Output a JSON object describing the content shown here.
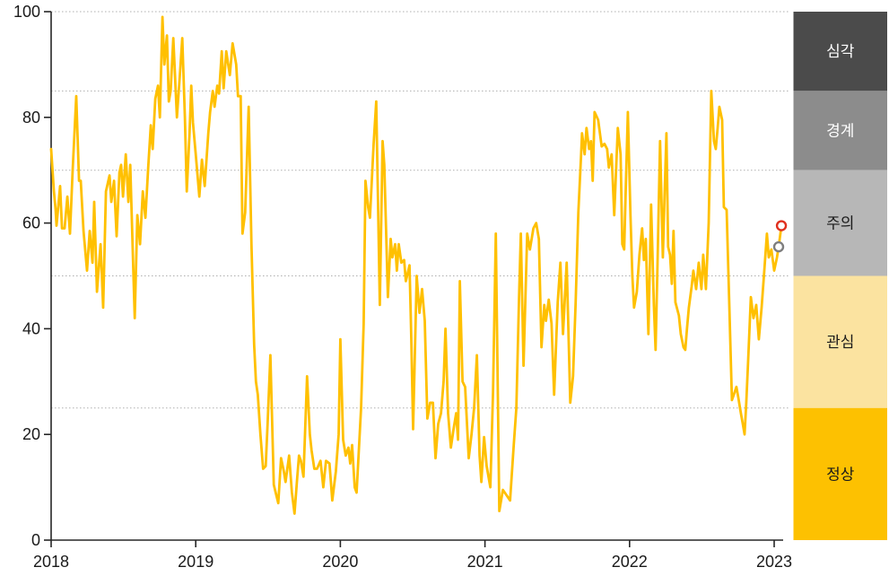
{
  "chart_data": {
    "type": "line",
    "title": "",
    "x_axis": {
      "ticks": [
        "2018",
        "2019",
        "2020",
        "2021",
        "2022",
        "2023"
      ],
      "range": [
        2018,
        2023.09
      ]
    },
    "y_axis": {
      "ticks": [
        0,
        20,
        40,
        60,
        80,
        100
      ],
      "range": [
        0,
        100
      ]
    },
    "gridlines_at": [
      25,
      50,
      70,
      85,
      100
    ],
    "legend_position": "right-band",
    "grid": "dotted-horizontal",
    "bands": [
      {
        "label": "심각",
        "from": 85,
        "to": 100,
        "color": "#4B4B4B",
        "text_color": "#FFFFFF"
      },
      {
        "label": "경계",
        "from": 70,
        "to": 85,
        "color": "#8C8C8C",
        "text_color": "#FFFFFF"
      },
      {
        "label": "주의",
        "from": 50,
        "to": 70,
        "color": "#B7B7B7",
        "text_color": "#1A1A1A"
      },
      {
        "label": "관심",
        "from": 25,
        "to": 50,
        "color": "#FBE3A0",
        "text_color": "#1A1A1A"
      },
      {
        "label": "정상",
        "from": 0,
        "to": 25,
        "color": "#FDC101",
        "text_color": "#1A1A1A"
      }
    ],
    "series": [
      {
        "name": "index",
        "color": "#FFC000",
        "points": [
          [
            2018.0,
            74
          ],
          [
            2018.019,
            66
          ],
          [
            2018.031,
            62.5
          ],
          [
            2018.037,
            59.5
          ],
          [
            2018.062,
            67
          ],
          [
            2018.075,
            59
          ],
          [
            2018.093,
            59
          ],
          [
            2018.112,
            65
          ],
          [
            2018.13,
            58
          ],
          [
            2018.149,
            70
          ],
          [
            2018.174,
            84
          ],
          [
            2018.193,
            68
          ],
          [
            2018.205,
            68
          ],
          [
            2018.224,
            58.5
          ],
          [
            2018.248,
            51
          ],
          [
            2018.267,
            58.5
          ],
          [
            2018.286,
            52.5
          ],
          [
            2018.298,
            64
          ],
          [
            2018.317,
            47
          ],
          [
            2018.342,
            56
          ],
          [
            2018.36,
            44
          ],
          [
            2018.379,
            66
          ],
          [
            2018.404,
            69
          ],
          [
            2018.416,
            64
          ],
          [
            2018.435,
            68
          ],
          [
            2018.453,
            57.5
          ],
          [
            2018.472,
            69.5
          ],
          [
            2018.484,
            71
          ],
          [
            2018.497,
            65
          ],
          [
            2018.516,
            73
          ],
          [
            2018.534,
            64
          ],
          [
            2018.547,
            71
          ],
          [
            2018.565,
            54
          ],
          [
            2018.578,
            42
          ],
          [
            2018.596,
            61.5
          ],
          [
            2018.615,
            56
          ],
          [
            2018.634,
            66
          ],
          [
            2018.652,
            61
          ],
          [
            2018.671,
            70.5
          ],
          [
            2018.689,
            78.5
          ],
          [
            2018.702,
            74
          ],
          [
            2018.72,
            83.5
          ],
          [
            2018.739,
            86
          ],
          [
            2018.752,
            80
          ],
          [
            2018.77,
            99
          ],
          [
            2018.783,
            90
          ],
          [
            2018.801,
            95.5
          ],
          [
            2018.814,
            83
          ],
          [
            2018.826,
            85
          ],
          [
            2018.845,
            95
          ],
          [
            2018.87,
            80
          ],
          [
            2018.888,
            87
          ],
          [
            2018.907,
            95
          ],
          [
            2018.925,
            80
          ],
          [
            2018.938,
            66
          ],
          [
            2018.957,
            77
          ],
          [
            2018.969,
            86
          ],
          [
            2018.981,
            79
          ],
          [
            2019.0,
            73
          ],
          [
            2019.025,
            65
          ],
          [
            2019.043,
            72
          ],
          [
            2019.062,
            67
          ],
          [
            2019.087,
            77
          ],
          [
            2019.099,
            81
          ],
          [
            2019.118,
            85
          ],
          [
            2019.13,
            82
          ],
          [
            2019.149,
            86
          ],
          [
            2019.161,
            84.5
          ],
          [
            2019.18,
            92.5
          ],
          [
            2019.193,
            85.5
          ],
          [
            2019.211,
            92.5
          ],
          [
            2019.236,
            88
          ],
          [
            2019.255,
            94
          ],
          [
            2019.28,
            90
          ],
          [
            2019.292,
            84
          ],
          [
            2019.311,
            84
          ],
          [
            2019.323,
            58
          ],
          [
            2019.342,
            62
          ],
          [
            2019.366,
            82
          ],
          [
            2019.385,
            56
          ],
          [
            2019.404,
            37
          ],
          [
            2019.416,
            30
          ],
          [
            2019.429,
            27.5
          ],
          [
            2019.447,
            20
          ],
          [
            2019.466,
            13.5
          ],
          [
            2019.484,
            14
          ],
          [
            2019.497,
            22
          ],
          [
            2019.516,
            35
          ],
          [
            2019.54,
            10.5
          ],
          [
            2019.553,
            9
          ],
          [
            2019.571,
            7
          ],
          [
            2019.59,
            15.5
          ],
          [
            2019.609,
            13
          ],
          [
            2019.621,
            11
          ],
          [
            2019.646,
            16
          ],
          [
            2019.665,
            9
          ],
          [
            2019.683,
            5
          ],
          [
            2019.702,
            12
          ],
          [
            2019.714,
            16
          ],
          [
            2019.727,
            15
          ],
          [
            2019.745,
            12
          ],
          [
            2019.77,
            31
          ],
          [
            2019.789,
            20
          ],
          [
            2019.801,
            17
          ],
          [
            2019.82,
            13.5
          ],
          [
            2019.839,
            13.5
          ],
          [
            2019.863,
            15
          ],
          [
            2019.882,
            10
          ],
          [
            2019.901,
            15
          ],
          [
            2019.925,
            14.5
          ],
          [
            2019.944,
            7.5
          ],
          [
            2019.969,
            13
          ],
          [
            2019.988,
            20
          ],
          [
            2020.0,
            38
          ],
          [
            2020.019,
            19
          ],
          [
            2020.037,
            16
          ],
          [
            2020.056,
            17.5
          ],
          [
            2020.068,
            14.5
          ],
          [
            2020.081,
            18
          ],
          [
            2020.099,
            10
          ],
          [
            2020.112,
            9
          ],
          [
            2020.124,
            15
          ],
          [
            2020.143,
            25
          ],
          [
            2020.161,
            41
          ],
          [
            2020.174,
            68
          ],
          [
            2020.192,
            63
          ],
          [
            2020.205,
            61
          ],
          [
            2020.23,
            75
          ],
          [
            2020.248,
            83
          ],
          [
            2020.273,
            44.5
          ],
          [
            2020.292,
            75.5
          ],
          [
            2020.304,
            71
          ],
          [
            2020.329,
            46
          ],
          [
            2020.348,
            57
          ],
          [
            2020.36,
            53.5
          ],
          [
            2020.379,
            56
          ],
          [
            2020.391,
            51
          ],
          [
            2020.404,
            56
          ],
          [
            2020.422,
            52.5
          ],
          [
            2020.441,
            53
          ],
          [
            2020.453,
            49
          ],
          [
            2020.478,
            52
          ],
          [
            2020.491,
            38
          ],
          [
            2020.503,
            21
          ],
          [
            2020.528,
            50
          ],
          [
            2020.547,
            43
          ],
          [
            2020.565,
            47.5
          ],
          [
            2020.584,
            41.5
          ],
          [
            2020.602,
            23
          ],
          [
            2020.621,
            26
          ],
          [
            2020.64,
            26
          ],
          [
            2020.658,
            15.5
          ],
          [
            2020.677,
            22
          ],
          [
            2020.696,
            24
          ],
          [
            2020.714,
            30
          ],
          [
            2020.727,
            40
          ],
          [
            2020.745,
            24
          ],
          [
            2020.764,
            17.5
          ],
          [
            2020.783,
            21
          ],
          [
            2020.801,
            24
          ],
          [
            2020.814,
            19
          ],
          [
            2020.826,
            49
          ],
          [
            2020.845,
            30
          ],
          [
            2020.863,
            29
          ],
          [
            2020.888,
            15.5
          ],
          [
            2020.907,
            20
          ],
          [
            2020.925,
            25
          ],
          [
            2020.944,
            35
          ],
          [
            2020.963,
            16
          ],
          [
            2020.975,
            11
          ],
          [
            2020.994,
            19.5
          ],
          [
            2021.012,
            14
          ],
          [
            2021.037,
            10
          ],
          [
            2021.056,
            28
          ],
          [
            2021.075,
            58
          ],
          [
            2021.099,
            5.5
          ],
          [
            2021.124,
            9.5
          ],
          [
            2021.149,
            8.5
          ],
          [
            2021.174,
            7.5
          ],
          [
            2021.199,
            18
          ],
          [
            2021.217,
            25
          ],
          [
            2021.236,
            46
          ],
          [
            2021.248,
            58
          ],
          [
            2021.267,
            33
          ],
          [
            2021.292,
            58
          ],
          [
            2021.311,
            55
          ],
          [
            2021.335,
            59
          ],
          [
            2021.354,
            60
          ],
          [
            2021.373,
            57
          ],
          [
            2021.391,
            36.5
          ],
          [
            2021.41,
            44.5
          ],
          [
            2021.422,
            41.5
          ],
          [
            2021.441,
            45.5
          ],
          [
            2021.46,
            41
          ],
          [
            2021.478,
            27.5
          ],
          [
            2021.503,
            45
          ],
          [
            2021.522,
            52.5
          ],
          [
            2021.54,
            39
          ],
          [
            2021.565,
            52.5
          ],
          [
            2021.59,
            26
          ],
          [
            2021.609,
            31
          ],
          [
            2021.627,
            45
          ],
          [
            2021.646,
            62
          ],
          [
            2021.665,
            73
          ],
          [
            2021.671,
            77
          ],
          [
            2021.689,
            73
          ],
          [
            2021.702,
            78
          ],
          [
            2021.72,
            74
          ],
          [
            2021.733,
            75.5
          ],
          [
            2021.745,
            68
          ],
          [
            2021.758,
            81
          ],
          [
            2021.783,
            79.5
          ],
          [
            2021.807,
            74.5
          ],
          [
            2021.826,
            75
          ],
          [
            2021.845,
            74
          ],
          [
            2021.857,
            70.5
          ],
          [
            2021.876,
            73
          ],
          [
            2021.894,
            61.5
          ],
          [
            2021.919,
            78
          ],
          [
            2021.938,
            73
          ],
          [
            2021.95,
            56
          ],
          [
            2021.963,
            55
          ],
          [
            2021.975,
            68
          ],
          [
            2021.988,
            81
          ],
          [
            2022.006,
            61.5
          ],
          [
            2022.019,
            50
          ],
          [
            2022.031,
            44
          ],
          [
            2022.05,
            47
          ],
          [
            2022.068,
            54
          ],
          [
            2022.087,
            59
          ],
          [
            2022.099,
            53
          ],
          [
            2022.112,
            57
          ],
          [
            2022.13,
            39
          ],
          [
            2022.149,
            63.5
          ],
          [
            2022.168,
            44.5
          ],
          [
            2022.18,
            36
          ],
          [
            2022.192,
            51
          ],
          [
            2022.211,
            75.5
          ],
          [
            2022.23,
            53.5
          ],
          [
            2022.242,
            65
          ],
          [
            2022.255,
            77
          ],
          [
            2022.267,
            55.5
          ],
          [
            2022.28,
            54
          ],
          [
            2022.292,
            48.5
          ],
          [
            2022.304,
            58.5
          ],
          [
            2022.317,
            45
          ],
          [
            2022.341,
            42.5
          ],
          [
            2022.354,
            39
          ],
          [
            2022.373,
            36.5
          ],
          [
            2022.385,
            36
          ],
          [
            2022.397,
            40
          ],
          [
            2022.41,
            44
          ],
          [
            2022.429,
            48
          ],
          [
            2022.441,
            51
          ],
          [
            2022.46,
            47.5
          ],
          [
            2022.478,
            52.5
          ],
          [
            2022.497,
            47.5
          ],
          [
            2022.509,
            54
          ],
          [
            2022.528,
            47.5
          ],
          [
            2022.547,
            60
          ],
          [
            2022.565,
            85
          ],
          [
            2022.584,
            75.5
          ],
          [
            2022.596,
            74
          ],
          [
            2022.609,
            78
          ],
          [
            2022.621,
            82
          ],
          [
            2022.64,
            79.5
          ],
          [
            2022.652,
            63
          ],
          [
            2022.671,
            62.5
          ],
          [
            2022.689,
            45
          ],
          [
            2022.708,
            26.5
          ],
          [
            2022.727,
            28
          ],
          [
            2022.739,
            29
          ],
          [
            2022.752,
            27
          ],
          [
            2022.77,
            24
          ],
          [
            2022.783,
            22
          ],
          [
            2022.795,
            20
          ],
          [
            2022.807,
            26
          ],
          [
            2022.82,
            34
          ],
          [
            2022.839,
            46
          ],
          [
            2022.857,
            42
          ],
          [
            2022.876,
            44.5
          ],
          [
            2022.894,
            38
          ],
          [
            2022.913,
            44
          ],
          [
            2022.932,
            51
          ],
          [
            2022.95,
            58
          ],
          [
            2022.963,
            53.5
          ],
          [
            2022.981,
            55
          ],
          [
            2023.0,
            51
          ],
          [
            2023.019,
            53.5
          ],
          [
            2023.031,
            55.5
          ],
          [
            2023.05,
            59.5
          ]
        ]
      }
    ],
    "end_markers": [
      {
        "name": "previous-value-marker",
        "t": 2023.031,
        "v": 55.5,
        "color": "#7F7F7F"
      },
      {
        "name": "latest-value-marker",
        "t": 2023.05,
        "v": 59.5,
        "color": "#E0301E"
      }
    ],
    "style": {
      "axis_color": "#262626",
      "label_color": "#1A1A1A",
      "gridline_color": "#AFAFAF",
      "background": "#FFFFFF"
    }
  }
}
